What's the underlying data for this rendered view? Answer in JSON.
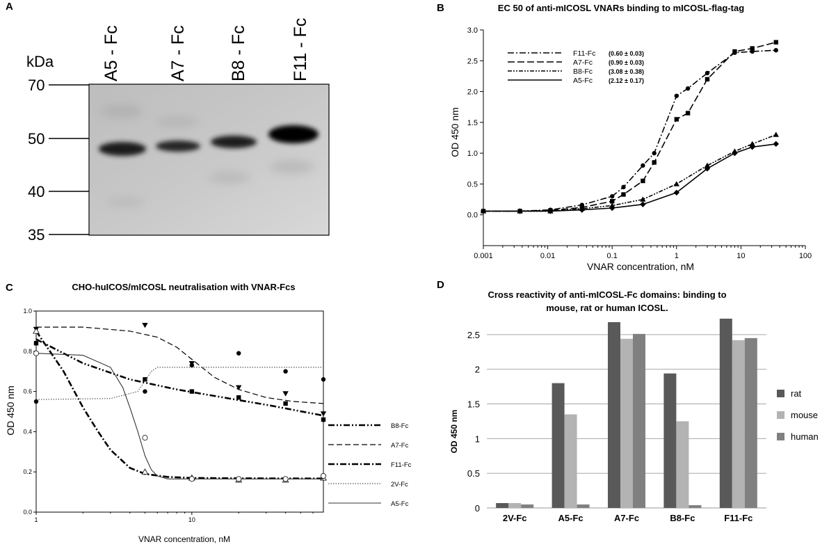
{
  "panel_labels": {
    "a": "A",
    "b": "B",
    "c": "C",
    "d": "D"
  },
  "colors": {
    "rat": "#595959",
    "mouse": "#b3b3b3",
    "human": "#808080"
  },
  "panel_a": {
    "kda_label": "kDa",
    "lanes": [
      "A5 - Fc",
      "A7 - Fc",
      "B8 - Fc",
      "F11 - Fc"
    ],
    "markers": [
      "70",
      "50",
      "40",
      "35"
    ]
  },
  "chart_data": [
    {
      "id": "B",
      "type": "line",
      "title": "EC 50 of anti-mICOSL VNARs binding to mICOSL-flag-tag",
      "xlabel": "VNAR concentration, nM",
      "ylabel": "OD 450 nm",
      "xscale": "log",
      "xlim": [
        0.001,
        100
      ],
      "ylim": [
        -0.5,
        3.0
      ],
      "xticks": [
        "0.001",
        "0.01",
        "0.1",
        "1",
        "10",
        "100"
      ],
      "yticks": [
        "0.0",
        "0.5",
        "1.0",
        "1.5",
        "2.0",
        "2.5",
        "3.0"
      ],
      "legend_placement": "top-left",
      "series": [
        {
          "name": "F11-Fc",
          "ec50": "(0.60 ± 0.03)",
          "marker": "circle",
          "x": [
            0.001,
            0.0037,
            0.011,
            0.034,
            0.1,
            0.15,
            0.3,
            0.45,
            1.0,
            1.5,
            3.0,
            8.0,
            15.0,
            35.0
          ],
          "y": [
            0.06,
            0.06,
            0.08,
            0.16,
            0.3,
            0.45,
            0.8,
            1.0,
            1.93,
            2.05,
            2.3,
            2.63,
            2.65,
            2.67
          ]
        },
        {
          "name": "A7-Fc",
          "ec50": "(0.90 ± 0.03)",
          "marker": "square",
          "x": [
            0.001,
            0.0037,
            0.011,
            0.034,
            0.1,
            0.15,
            0.3,
            0.45,
            1.0,
            1.5,
            3.0,
            8.0,
            15.0,
            35.0
          ],
          "y": [
            0.06,
            0.06,
            0.07,
            0.12,
            0.22,
            0.33,
            0.55,
            0.85,
            1.55,
            1.65,
            2.2,
            2.65,
            2.7,
            2.8
          ]
        },
        {
          "name": "B8-Fc",
          "ec50": "(3.08 ± 0.38)",
          "marker": "triangle",
          "x": [
            0.001,
            0.0037,
            0.011,
            0.034,
            0.1,
            0.3,
            1.0,
            3.0,
            8.0,
            15.0,
            35.0
          ],
          "y": [
            0.06,
            0.06,
            0.06,
            0.1,
            0.15,
            0.25,
            0.5,
            0.8,
            1.03,
            1.15,
            1.3
          ]
        },
        {
          "name": "A5-Fc",
          "ec50": "(2.12 ± 0.17)",
          "marker": "diamond",
          "x": [
            0.001,
            0.0037,
            0.011,
            0.034,
            0.1,
            0.3,
            1.0,
            3.0,
            8.0,
            15.0,
            35.0
          ],
          "y": [
            0.06,
            0.06,
            0.06,
            0.08,
            0.11,
            0.17,
            0.36,
            0.75,
            1.0,
            1.1,
            1.15
          ]
        }
      ]
    },
    {
      "id": "C",
      "type": "line",
      "title": "CHO-huICOS/mICOSL neutralisation with VNAR-Fcs",
      "xlabel": "VNAR concentration, nM",
      "ylabel": "OD 450 nm",
      "xscale": "log",
      "xlim": [
        1,
        70
      ],
      "ylim": [
        0.0,
        1.0
      ],
      "xticks": [
        "1",
        "10"
      ],
      "yticks": [
        "0.0",
        "0.2",
        "0.4",
        "0.6",
        "0.8",
        "1.0"
      ],
      "legend_placement": "right",
      "series": [
        {
          "name": "B8-Fc",
          "marker": "square",
          "x": [
            1,
            5,
            10,
            20,
            40,
            70
          ],
          "y": [
            0.84,
            0.66,
            0.6,
            0.57,
            0.54,
            0.46
          ],
          "curve_x": [
            1,
            2,
            4,
            8,
            16,
            32,
            70
          ],
          "curve_y": [
            0.86,
            0.74,
            0.66,
            0.61,
            0.57,
            0.53,
            0.48
          ]
        },
        {
          "name": "A7-Fc",
          "marker": "triangle-down",
          "x": [
            1,
            5,
            10,
            20,
            40,
            70
          ],
          "y": [
            0.91,
            0.93,
            0.74,
            0.62,
            0.59,
            0.49
          ],
          "curve_x": [
            1,
            2,
            4,
            6,
            8,
            10,
            14,
            20,
            30,
            45,
            70
          ],
          "curve_y": [
            0.92,
            0.92,
            0.9,
            0.87,
            0.82,
            0.76,
            0.67,
            0.61,
            0.57,
            0.55,
            0.54
          ]
        },
        {
          "name": "F11-Fc",
          "marker": "triangle-open",
          "x": [
            1,
            5,
            10,
            20,
            40,
            70
          ],
          "y": [
            0.9,
            0.2,
            0.17,
            0.16,
            0.16,
            0.17
          ],
          "curve_x": [
            1,
            1.5,
            2,
            2.5,
            3,
            4,
            5,
            7,
            10,
            20,
            70
          ],
          "curve_y": [
            0.9,
            0.7,
            0.52,
            0.4,
            0.31,
            0.22,
            0.19,
            0.175,
            0.17,
            0.168,
            0.167
          ]
        },
        {
          "name": "2V-Fc",
          "marker": "circle-filled",
          "x": [
            1,
            5,
            10,
            20,
            40,
            70
          ],
          "y": [
            0.55,
            0.6,
            0.73,
            0.79,
            0.7,
            0.66
          ],
          "curve_x": [
            1,
            3,
            4.5,
            5.5,
            6,
            7,
            10,
            20,
            70
          ],
          "curve_y": [
            0.56,
            0.565,
            0.6,
            0.7,
            0.72,
            0.72,
            0.72,
            0.72,
            0.72
          ]
        },
        {
          "name": "A5-Fc",
          "marker": "circle-open",
          "x": [
            1,
            5,
            10,
            20,
            40,
            70
          ],
          "y": [
            0.79,
            0.37,
            0.165,
            0.165,
            0.165,
            0.18
          ],
          "curve_x": [
            1,
            2,
            3,
            3.6,
            4,
            4.5,
            5,
            5.5,
            6,
            7,
            10,
            70
          ],
          "curve_y": [
            0.79,
            0.78,
            0.72,
            0.62,
            0.52,
            0.4,
            0.28,
            0.21,
            0.18,
            0.165,
            0.165,
            0.165
          ]
        }
      ]
    },
    {
      "id": "D",
      "type": "bar",
      "title_line1": "Cross reactivity of anti-mICOSL-Fc domains: binding to",
      "title_line2": "mouse, rat or human ICOSL.",
      "ylabel": "OD 450 nm",
      "ylim": [
        0,
        2.5
      ],
      "yticks": [
        "0",
        "0.5",
        "1",
        "1.5",
        "2",
        "2.5"
      ],
      "legend_placement": "right",
      "categories": [
        "2V-Fc",
        "A5-Fc",
        "A7-Fc",
        "B8-Fc",
        "F11-Fc"
      ],
      "series": [
        {
          "name": "rat",
          "values": [
            0.07,
            1.8,
            2.68,
            1.94,
            2.73
          ]
        },
        {
          "name": "mouse",
          "values": [
            0.07,
            1.35,
            2.44,
            1.25,
            2.42
          ]
        },
        {
          "name": "human",
          "values": [
            0.05,
            0.05,
            2.51,
            0.04,
            2.45
          ]
        }
      ]
    }
  ]
}
